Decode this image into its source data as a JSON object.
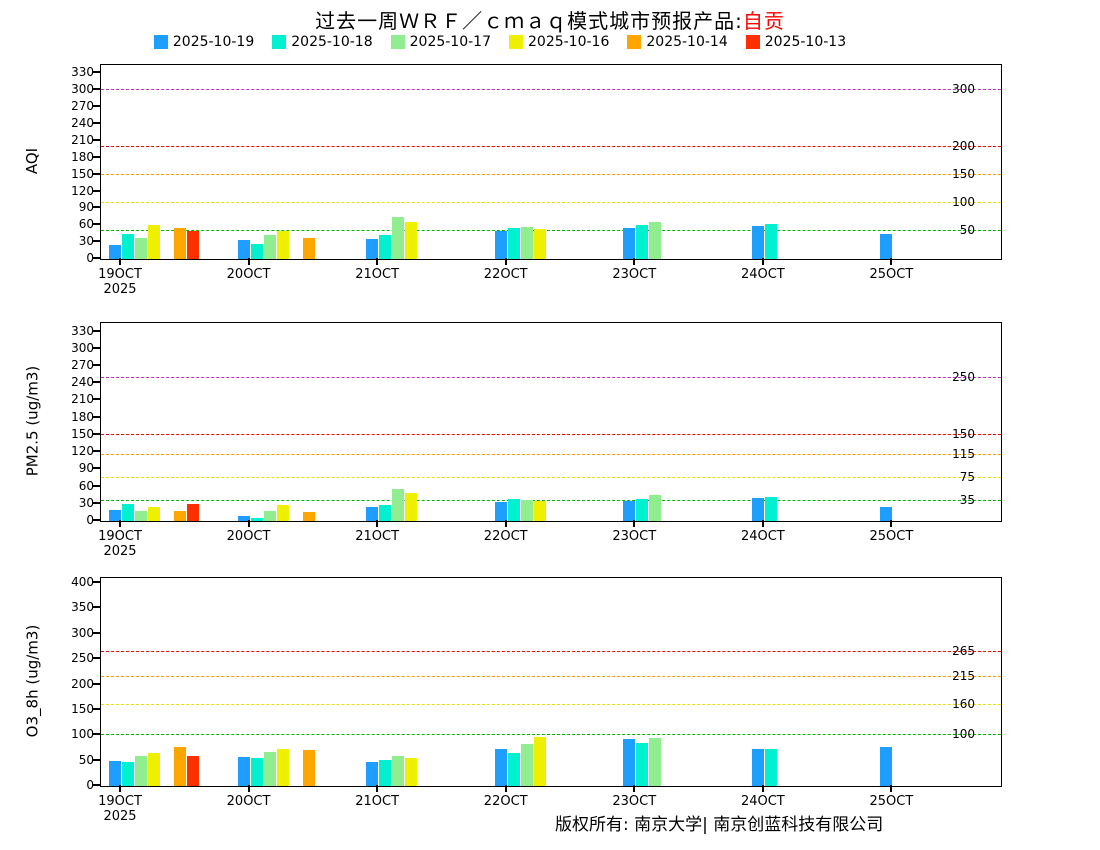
{
  "title": {
    "main": "过去一周ＷＲＦ／ｃｍａｑ模式城市预报产品:",
    "city": "自贡",
    "city_color": "#FF0000"
  },
  "legend": [
    {
      "label": "2025-10-19",
      "color": "#1E9FFF"
    },
    {
      "label": "2025-10-18",
      "color": "#00F0D0"
    },
    {
      "label": "2025-10-17",
      "color": "#90EE90"
    },
    {
      "label": "2025-10-16",
      "color": "#EEF000"
    },
    {
      "label": "2025-10-14",
      "color": "#FFA500"
    },
    {
      "label": "2025-10-13",
      "color": "#FF3000"
    }
  ],
  "footer": "版权所有: 南京大学| 南京创蓝科技有限公司",
  "chart_data": [
    {
      "type": "bar",
      "title": "",
      "ylabel": "AQI",
      "xlabel": "",
      "ylim": [
        0,
        345
      ],
      "yticks": [
        0,
        30,
        60,
        90,
        120,
        150,
        180,
        210,
        240,
        270,
        300,
        330
      ],
      "categories": [
        "19OCT",
        "20OCT",
        "21OCT",
        "22OCT",
        "23OCT",
        "24OCT",
        "25OCT"
      ],
      "x_sub_label": "2025",
      "grid": false,
      "legend_position": "top",
      "series": [
        {
          "name": "2025-10-19",
          "color": "#1E9FFF",
          "values": [
            25,
            33,
            35,
            50,
            55,
            58,
            45
          ]
        },
        {
          "name": "2025-10-18",
          "color": "#00F0D0",
          "values": [
            45,
            27,
            42,
            55,
            60,
            62,
            null
          ]
        },
        {
          "name": "2025-10-17",
          "color": "#90EE90",
          "values": [
            38,
            42,
            75,
            57,
            65,
            null,
            null
          ]
        },
        {
          "name": "2025-10-16",
          "color": "#EEF000",
          "values": [
            60,
            50,
            65,
            53,
            null,
            null,
            null
          ]
        },
        {
          "name": "2025-10-14",
          "color": "#FFA500",
          "values": [
            55,
            38,
            null,
            null,
            null,
            null,
            null
          ]
        },
        {
          "name": "2025-10-13",
          "color": "#FF3000",
          "values": [
            50,
            null,
            null,
            null,
            null,
            null,
            null
          ]
        }
      ],
      "ref_lines": [
        {
          "value": 50,
          "color": "#00B400",
          "label": "50"
        },
        {
          "value": 100,
          "color": "#E8E000",
          "label": "100"
        },
        {
          "value": 150,
          "color": "#FF9700",
          "label": "150"
        },
        {
          "value": 200,
          "color": "#FF0000",
          "label": "200"
        },
        {
          "value": 300,
          "color": "#C030C0",
          "label": "300"
        }
      ]
    },
    {
      "type": "bar",
      "title": "",
      "ylabel": "PM2.5 (ug/m3)",
      "xlabel": "",
      "ylim": [
        0,
        345
      ],
      "yticks": [
        0,
        30,
        60,
        90,
        120,
        150,
        180,
        210,
        240,
        270,
        300,
        330
      ],
      "categories": [
        "19OCT",
        "20OCT",
        "21OCT",
        "22OCT",
        "23OCT",
        "24OCT",
        "25OCT"
      ],
      "x_sub_label": "2025",
      "grid": false,
      "legend_position": "top",
      "series": [
        {
          "name": "2025-10-19",
          "color": "#1E9FFF",
          "values": [
            20,
            8,
            25,
            33,
            35,
            40,
            25
          ]
        },
        {
          "name": "2025-10-18",
          "color": "#00F0D0",
          "values": [
            30,
            5,
            28,
            38,
            38,
            42,
            null
          ]
        },
        {
          "name": "2025-10-17",
          "color": "#90EE90",
          "values": [
            18,
            18,
            55,
            36,
            45,
            null,
            null
          ]
        },
        {
          "name": "2025-10-16",
          "color": "#EEF000",
          "values": [
            25,
            28,
            48,
            35,
            null,
            null,
            null
          ]
        },
        {
          "name": "2025-10-14",
          "color": "#FFA500",
          "values": [
            18,
            15,
            null,
            null,
            null,
            null,
            null
          ]
        },
        {
          "name": "2025-10-13",
          "color": "#FF3000",
          "values": [
            30,
            null,
            null,
            null,
            null,
            null,
            null
          ]
        }
      ],
      "ref_lines": [
        {
          "value": 35,
          "color": "#00B400",
          "label": "35"
        },
        {
          "value": 75,
          "color": "#E8E000",
          "label": "75"
        },
        {
          "value": 115,
          "color": "#FF9700",
          "label": "115"
        },
        {
          "value": 150,
          "color": "#FF0000",
          "label": "150"
        },
        {
          "value": 250,
          "color": "#C030C0",
          "label": "250"
        }
      ]
    },
    {
      "type": "bar",
      "title": "",
      "ylabel": "O3_8h (ug/m3)",
      "xlabel": "",
      "ylim": [
        0,
        410
      ],
      "yticks": [
        0,
        50,
        100,
        150,
        200,
        250,
        300,
        350,
        400
      ],
      "categories": [
        "19OCT",
        "20OCT",
        "21OCT",
        "22OCT",
        "23OCT",
        "24OCT",
        "25OCT"
      ],
      "x_sub_label": "2025",
      "grid": false,
      "legend_position": "top",
      "series": [
        {
          "name": "2025-10-19",
          "color": "#1E9FFF",
          "values": [
            50,
            58,
            48,
            73,
            92,
            73,
            77
          ]
        },
        {
          "name": "2025-10-18",
          "color": "#00F0D0",
          "values": [
            48,
            55,
            52,
            65,
            85,
            72,
            null
          ]
        },
        {
          "name": "2025-10-17",
          "color": "#90EE90",
          "values": [
            60,
            67,
            60,
            83,
            95,
            null,
            null
          ]
        },
        {
          "name": "2025-10-16",
          "color": "#EEF000",
          "values": [
            65,
            72,
            56,
            97,
            null,
            null,
            null
          ]
        },
        {
          "name": "2025-10-14",
          "color": "#FFA500",
          "values": [
            76,
            71,
            null,
            null,
            null,
            null,
            null
          ]
        },
        {
          "name": "2025-10-13",
          "color": "#FF3000",
          "values": [
            60,
            null,
            null,
            null,
            null,
            null,
            null
          ]
        }
      ],
      "ref_lines": [
        {
          "value": 100,
          "color": "#00B400",
          "label": "100"
        },
        {
          "value": 160,
          "color": "#E8E000",
          "label": "160"
        },
        {
          "value": 215,
          "color": "#FF9700",
          "label": "215"
        },
        {
          "value": 265,
          "color": "#FF0000",
          "label": "265"
        }
      ]
    }
  ]
}
